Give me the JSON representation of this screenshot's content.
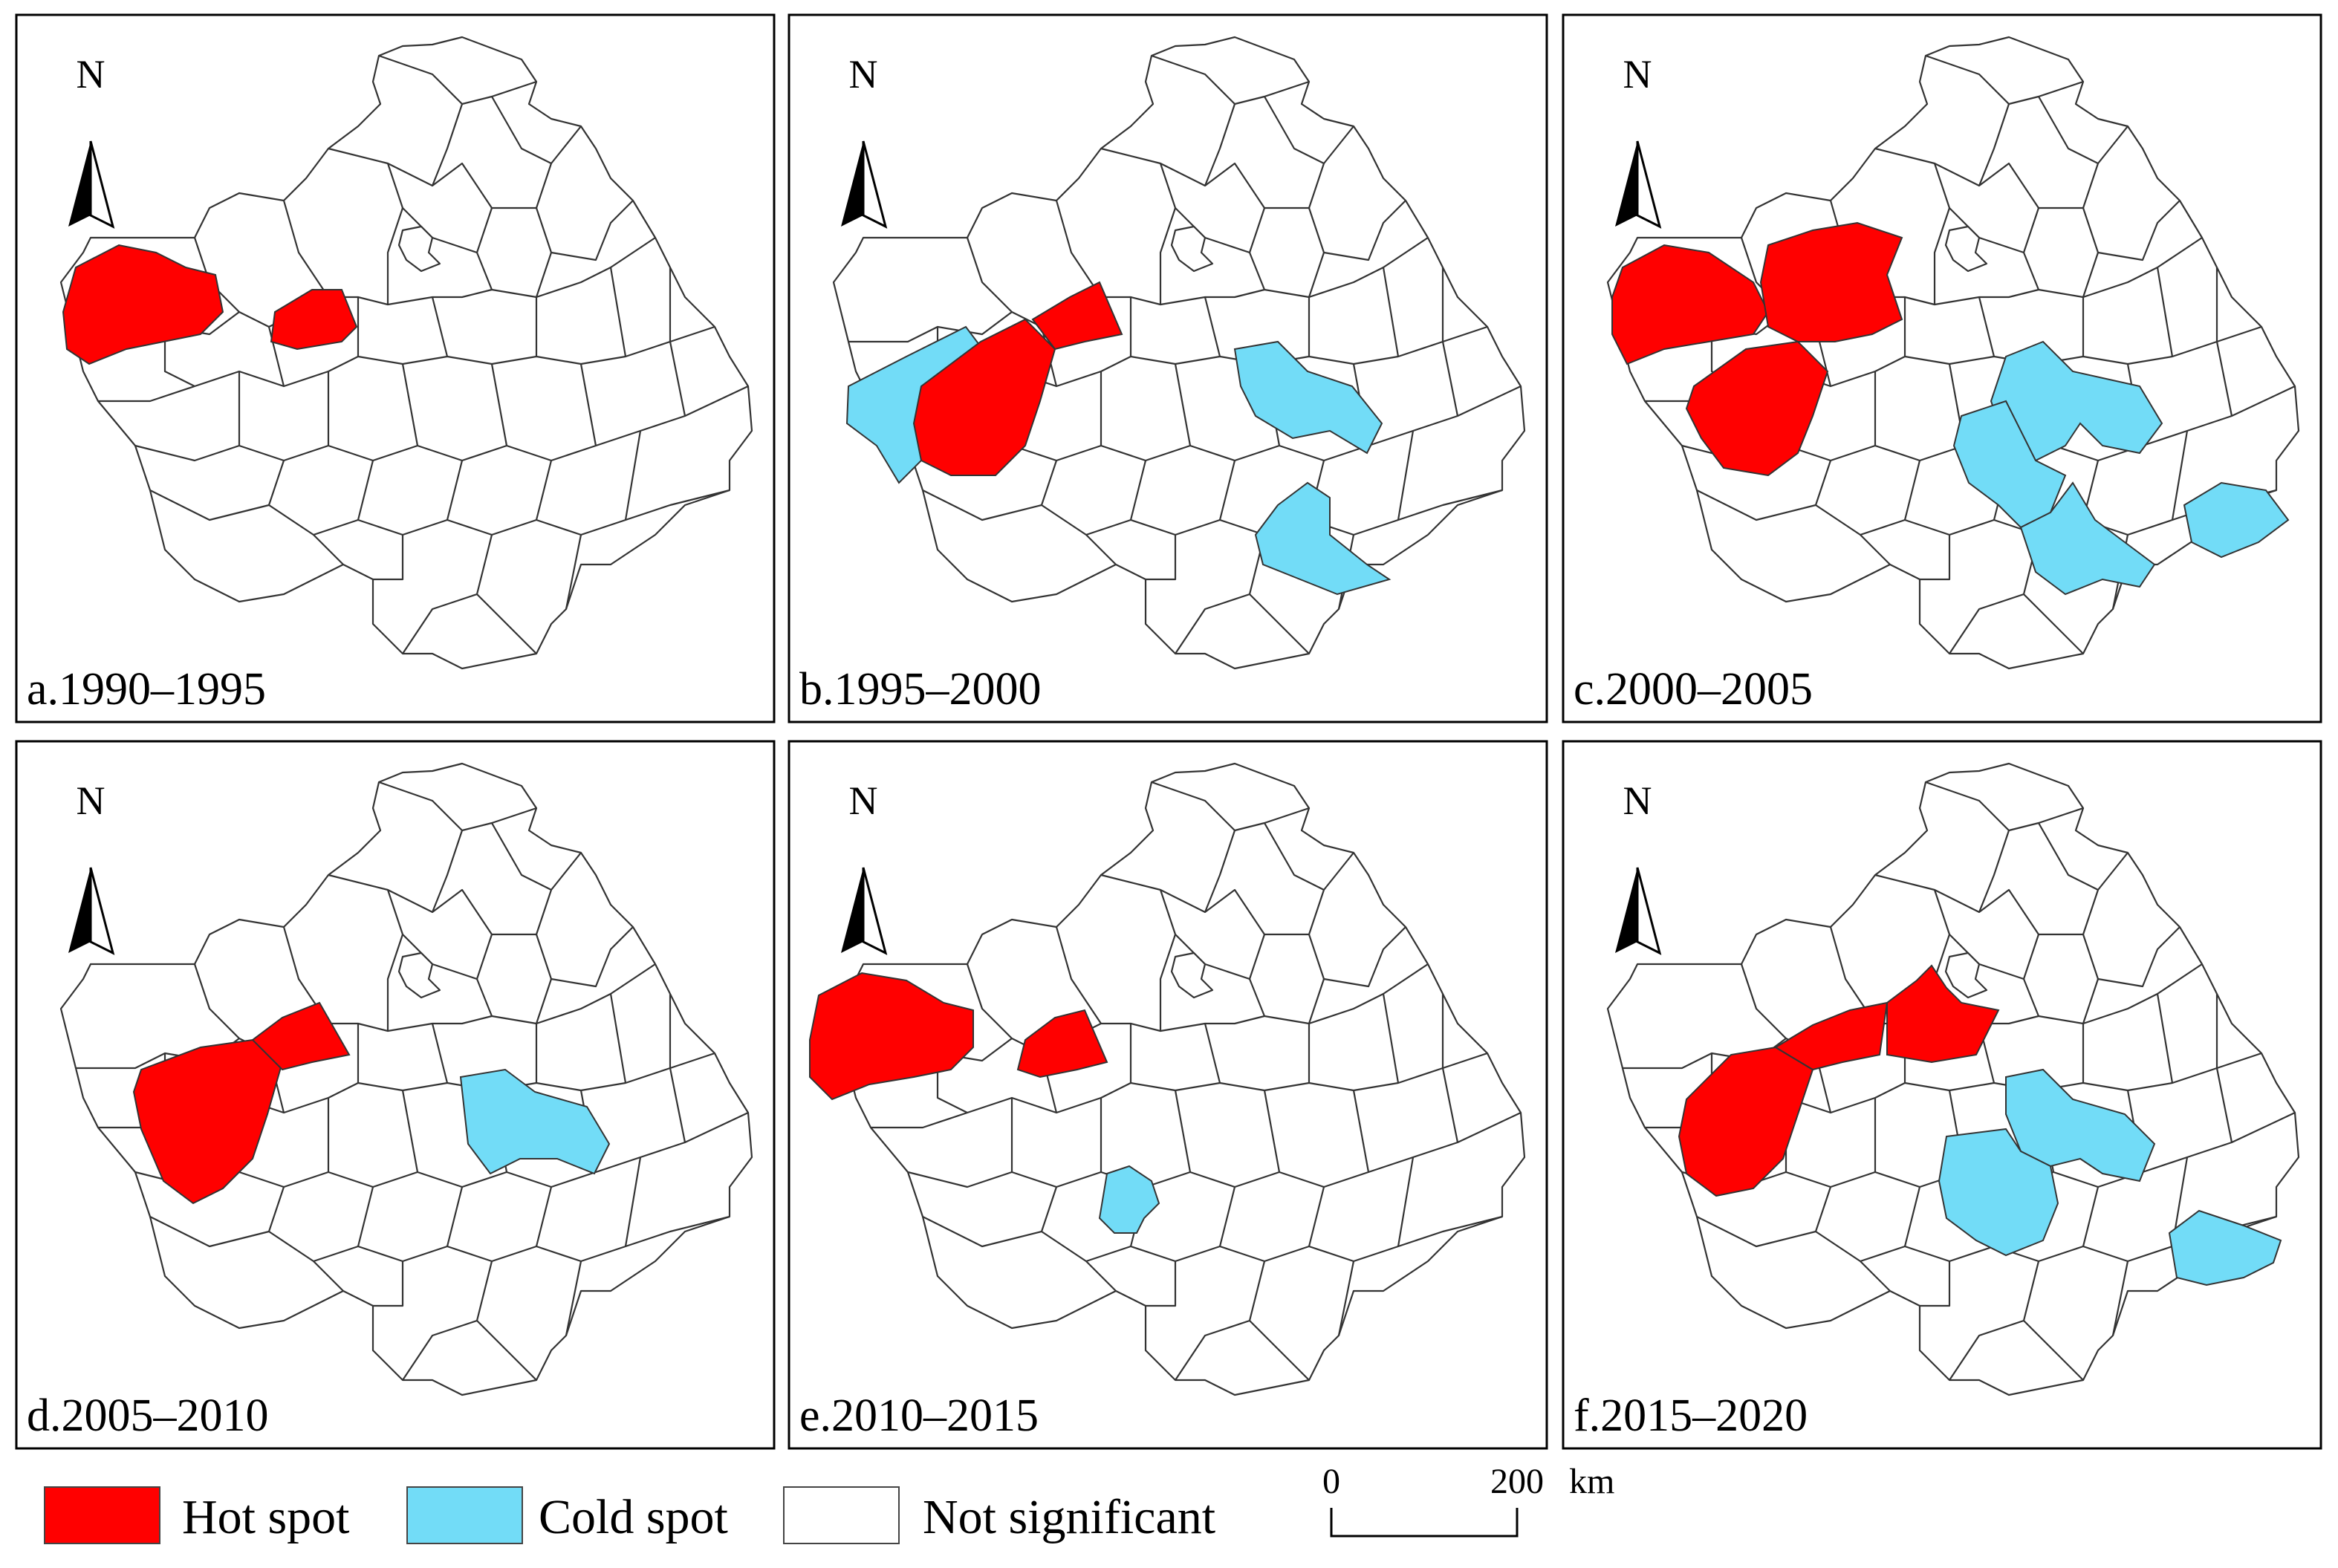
{
  "north_label": "N",
  "panels": [
    {
      "id": "a",
      "label": "a.1990–1995"
    },
    {
      "id": "b",
      "label": "b.1995–2000"
    },
    {
      "id": "c",
      "label": "c.2000–2005"
    },
    {
      "id": "d",
      "label": "d.2005–2010"
    },
    {
      "id": "e",
      "label": "e.2010–2015"
    },
    {
      "id": "f",
      "label": "f.2015–2020"
    }
  ],
  "legend": {
    "hot_label": "Hot spot",
    "cold_label": "Cold spot",
    "ns_label": "Not significant",
    "colors": {
      "hot": "#ff0000",
      "cold": "#72dcf7",
      "ns": "#ffffff"
    }
  },
  "scale_bar": {
    "start": "0",
    "end": "200",
    "unit": "km"
  }
}
